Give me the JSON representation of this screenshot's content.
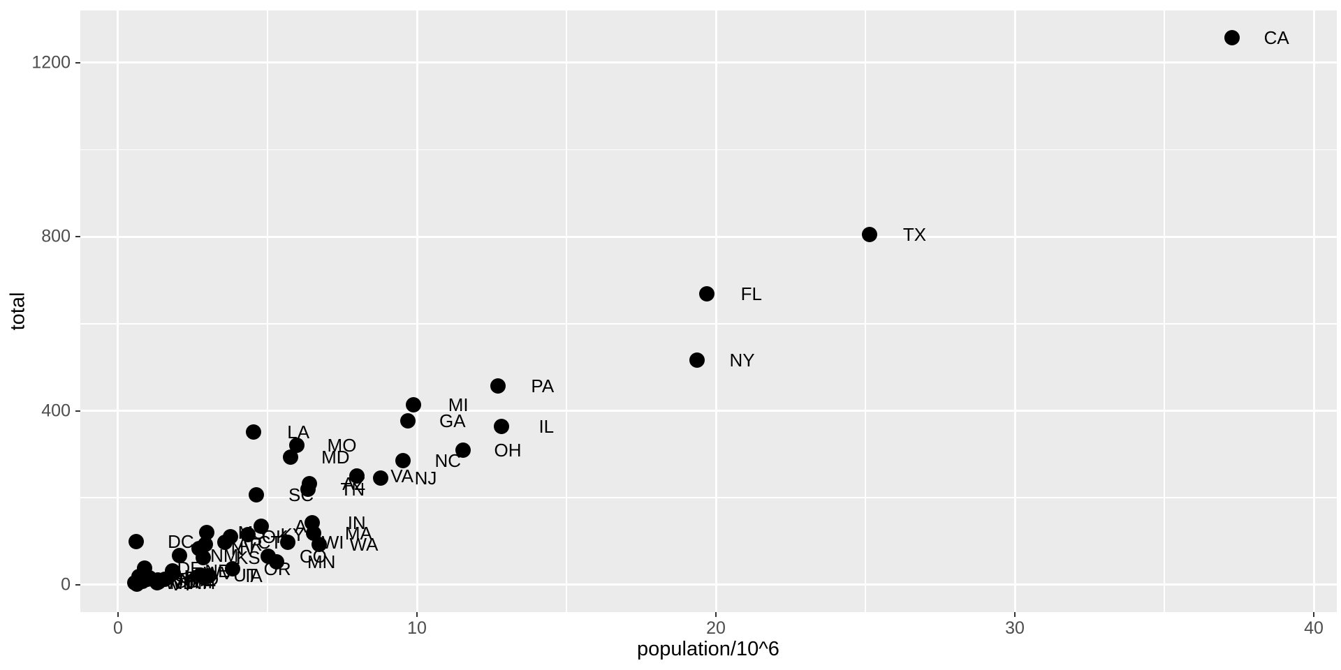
{
  "chart_data": {
    "type": "scatter",
    "title": "",
    "xlabel": "population/10^6",
    "ylabel": "total",
    "xlim": [
      -1.26,
      40.77
    ],
    "ylim": [
      -62.85,
      1319.85
    ],
    "x_ticks": [
      0,
      10,
      20,
      30,
      40
    ],
    "x_minor_ticks": [
      5,
      15,
      25,
      35
    ],
    "y_ticks": [
      0,
      400,
      800,
      1200
    ],
    "y_minor_ticks": [
      200,
      600,
      1000
    ],
    "grid": true,
    "legend_position": "none",
    "label_nudge_x": 1.5,
    "style": {
      "panel_bg": "#EBEBEB",
      "grid_color": "#FFFFFF",
      "point_color": "#000000",
      "label_color": "#000000",
      "tick_mark_color": "#333333",
      "tick_label_color": "#4D4D4D",
      "axis_title_color": "#000000"
    },
    "points": [
      {
        "label": "AL",
        "x": 4.78,
        "y": 135
      },
      {
        "label": "AK",
        "x": 0.71,
        "y": 19
      },
      {
        "label": "AZ",
        "x": 6.392,
        "y": 232
      },
      {
        "label": "AR",
        "x": 2.916,
        "y": 93
      },
      {
        "label": "CA",
        "x": 37.254,
        "y": 1257
      },
      {
        "label": "CO",
        "x": 5.029,
        "y": 65
      },
      {
        "label": "CT",
        "x": 3.574,
        "y": 97
      },
      {
        "label": "DE",
        "x": 0.898,
        "y": 38
      },
      {
        "label": "DC",
        "x": 0.602,
        "y": 99
      },
      {
        "label": "FL",
        "x": 19.688,
        "y": 669
      },
      {
        "label": "GA",
        "x": 9.688,
        "y": 376
      },
      {
        "label": "HI",
        "x": 1.36,
        "y": 7
      },
      {
        "label": "ID",
        "x": 1.568,
        "y": 12
      },
      {
        "label": "IL",
        "x": 12.831,
        "y": 364
      },
      {
        "label": "IN",
        "x": 6.484,
        "y": 142
      },
      {
        "label": "IA",
        "x": 3.046,
        "y": 21
      },
      {
        "label": "KS",
        "x": 2.853,
        "y": 63
      },
      {
        "label": "KY",
        "x": 4.339,
        "y": 116
      },
      {
        "label": "LA",
        "x": 4.533,
        "y": 351
      },
      {
        "label": "ME",
        "x": 1.328,
        "y": 11
      },
      {
        "label": "MD",
        "x": 5.774,
        "y": 293
      },
      {
        "label": "MA",
        "x": 6.548,
        "y": 118
      },
      {
        "label": "MI",
        "x": 9.884,
        "y": 413
      },
      {
        "label": "MN",
        "x": 5.304,
        "y": 53
      },
      {
        "label": "MS",
        "x": 2.967,
        "y": 120
      },
      {
        "label": "MO",
        "x": 5.989,
        "y": 321
      },
      {
        "label": "MT",
        "x": 0.989,
        "y": 12
      },
      {
        "label": "NE",
        "x": 1.826,
        "y": 32
      },
      {
        "label": "NV",
        "x": 2.701,
        "y": 84
      },
      {
        "label": "NH",
        "x": 1.316,
        "y": 5
      },
      {
        "label": "NJ",
        "x": 8.792,
        "y": 246
      },
      {
        "label": "NM",
        "x": 2.059,
        "y": 67
      },
      {
        "label": "NY",
        "x": 19.378,
        "y": 517
      },
      {
        "label": "NC",
        "x": 9.535,
        "y": 286
      },
      {
        "label": "ND",
        "x": 0.673,
        "y": 4
      },
      {
        "label": "OH",
        "x": 11.537,
        "y": 310
      },
      {
        "label": "OK",
        "x": 3.751,
        "y": 111
      },
      {
        "label": "OR",
        "x": 3.831,
        "y": 36
      },
      {
        "label": "PA",
        "x": 12.702,
        "y": 457
      },
      {
        "label": "RI",
        "x": 1.053,
        "y": 16
      },
      {
        "label": "SC",
        "x": 4.625,
        "y": 207
      },
      {
        "label": "SD",
        "x": 0.814,
        "y": 8
      },
      {
        "label": "TN",
        "x": 6.346,
        "y": 219
      },
      {
        "label": "TX",
        "x": 25.146,
        "y": 805
      },
      {
        "label": "UT",
        "x": 2.764,
        "y": 22
      },
      {
        "label": "VT",
        "x": 0.626,
        "y": 2
      },
      {
        "label": "VA",
        "x": 8.001,
        "y": 250
      },
      {
        "label": "WA",
        "x": 6.725,
        "y": 93
      },
      {
        "label": "WV",
        "x": 1.853,
        "y": 27
      },
      {
        "label": "WI",
        "x": 5.687,
        "y": 97
      },
      {
        "label": "WY",
        "x": 0.564,
        "y": 5
      }
    ]
  }
}
